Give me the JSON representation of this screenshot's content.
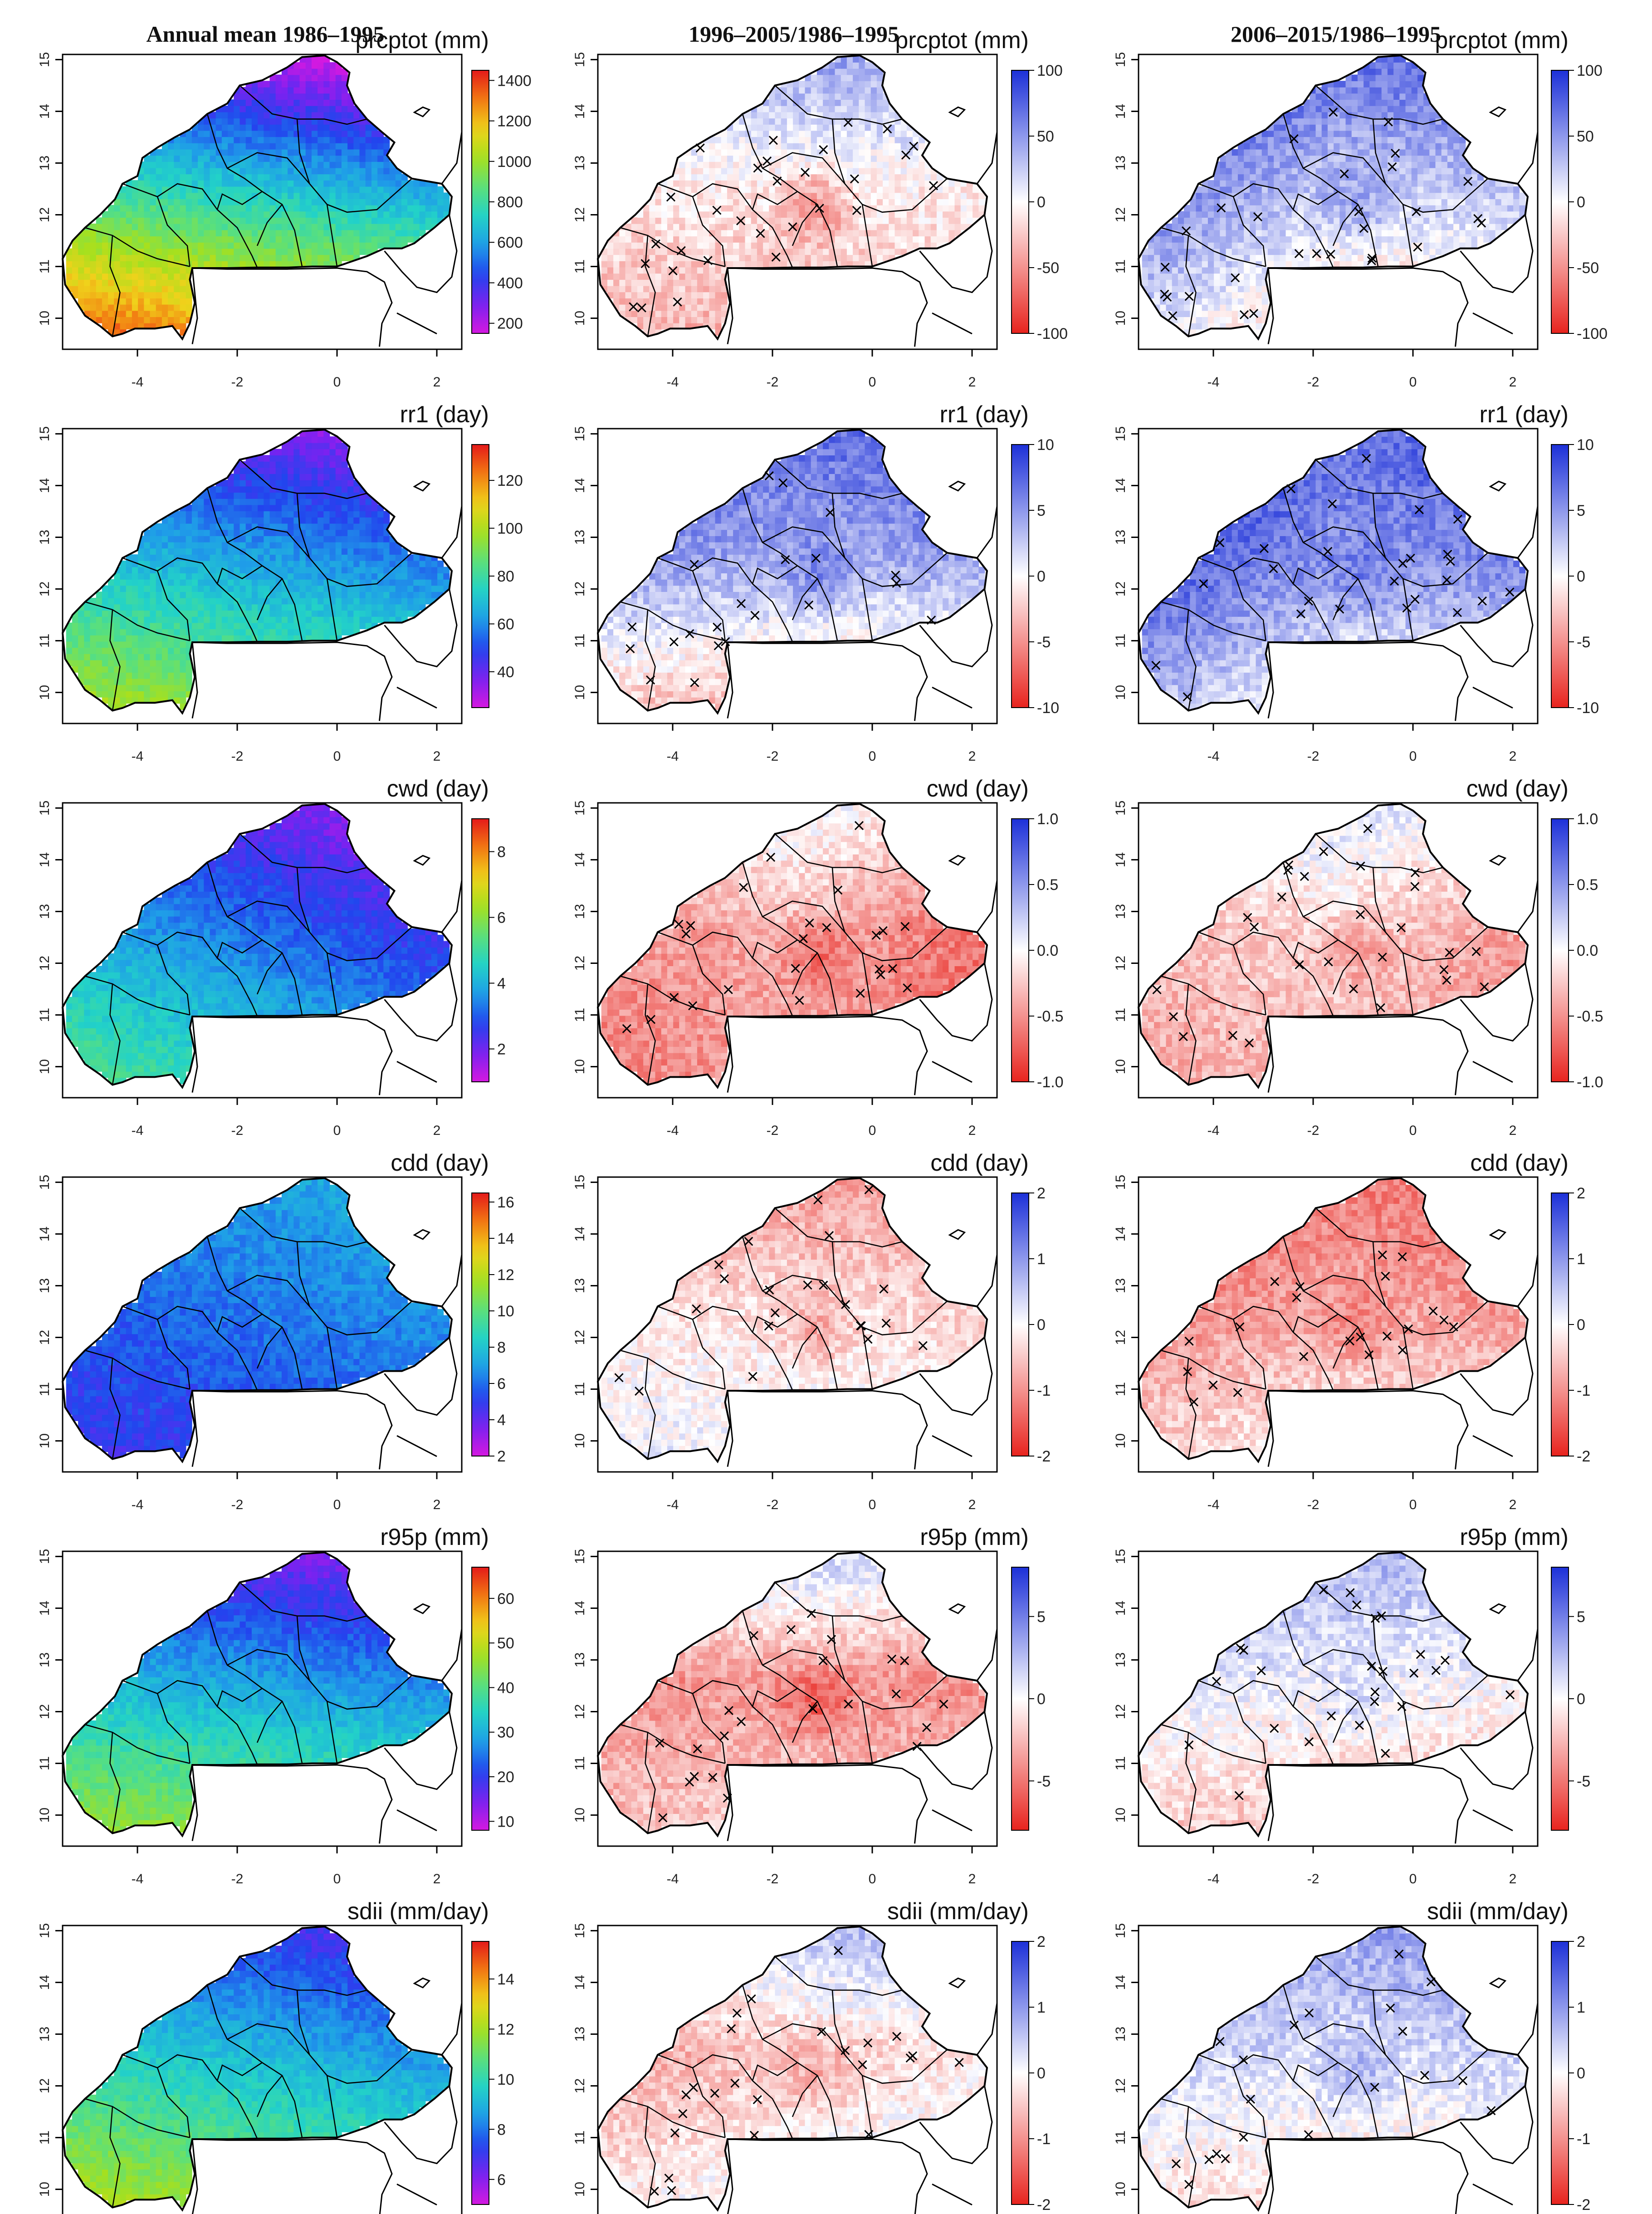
{
  "columns": [
    {
      "title": "Annual mean 1986–1995",
      "type": "mean"
    },
    {
      "title": "1996–2005/1986–1995",
      "type": "diff"
    },
    {
      "title": "2006–2015/1986–1995",
      "type": "diff"
    }
  ],
  "axes": {
    "x_ticks": [
      "-4",
      "-2",
      "0",
      "2"
    ],
    "y_ticks": [
      "10",
      "11",
      "12",
      "13",
      "14",
      "15"
    ],
    "x_range": [
      -5.5,
      2.5
    ],
    "y_range": [
      9.4,
      15.1
    ]
  },
  "colors": {
    "mean_ramp": [
      "#d419e0",
      "#7a22f0",
      "#2244ee",
      "#1f9de8",
      "#22d2c8",
      "#5ce07a",
      "#a6e01e",
      "#f0d21b",
      "#f27a12",
      "#e41a1a"
    ],
    "diff_neg": "#e8241e",
    "diff_mid": "#ffffff",
    "diff_pos": "#1c30d8"
  },
  "rows": [
    {
      "index": "prcptot",
      "label": "prcptot (mm)",
      "mean": {
        "ticks": [
          "200",
          "400",
          "600",
          "800",
          "1000",
          "1200",
          "1400"
        ],
        "range": [
          150,
          1450
        ]
      },
      "diff": {
        "ticks": [
          "-100",
          "-50",
          "0",
          "50",
          "100"
        ],
        "range": [
          -100,
          100
        ]
      },
      "gradient": {
        "lat_low": 1250,
        "lat_high": 200,
        "lon_east_shift": -120
      },
      "changes": [
        {
          "north": 45,
          "middle": -8,
          "south": -35,
          "west": 0,
          "east": 5,
          "hot_sign": -1,
          "hot": 40
        },
        {
          "north": 70,
          "middle": 25,
          "south": -30,
          "west": 65,
          "east": 10,
          "hot_sign": 1,
          "hot": 30
        }
      ]
    },
    {
      "index": "rr1",
      "label": "rr1 (day)",
      "mean": {
        "ticks": [
          "40",
          "60",
          "80",
          "100",
          "120"
        ],
        "range": [
          25,
          135
        ]
      },
      "diff": {
        "ticks": [
          "-10",
          "-5",
          "0",
          "5",
          "10"
        ],
        "range": [
          -10,
          10
        ]
      },
      "gradient": {
        "lat_low": 92,
        "lat_high": 38,
        "lon_east_shift": -8
      },
      "changes": [
        {
          "north": 7,
          "middle": 4,
          "south": -4,
          "west": 2,
          "east": 1,
          "hot_sign": 1,
          "hot": 3
        },
        {
          "north": 7,
          "middle": 5,
          "south": -1,
          "west": 6,
          "east": 2,
          "hot_sign": 1,
          "hot": 2
        }
      ]
    },
    {
      "index": "cwd",
      "label": "cwd (day)",
      "mean": {
        "ticks": [
          "2",
          "4",
          "6",
          "8"
        ],
        "range": [
          1,
          9
        ]
      },
      "diff": {
        "ticks": [
          "-1.0",
          "-0.5",
          "0.0",
          "0.5",
          "1.0"
        ],
        "range": [
          -1,
          1
        ]
      },
      "gradient": {
        "lat_low": 4.6,
        "lat_high": 2.0,
        "lon_east_shift": -0.8
      },
      "changes": [
        {
          "north": 0.1,
          "middle": -0.35,
          "south": -0.45,
          "west": -0.2,
          "east": -0.5,
          "hot_sign": -1,
          "hot": 0.3
        },
        {
          "north": 0.2,
          "middle": -0.2,
          "south": -0.3,
          "west": -0.15,
          "east": -0.4,
          "hot_sign": -1,
          "hot": 0.2
        }
      ]
    },
    {
      "index": "cdd",
      "label": "cdd (day)",
      "mean": {
        "ticks": [
          "2",
          "4",
          "6",
          "8",
          "10",
          "12",
          "14",
          "16"
        ],
        "range": [
          2,
          16.5
        ]
      },
      "diff": {
        "ticks": [
          "-2",
          "-1",
          "0",
          "1",
          "2"
        ],
        "range": [
          -2,
          2
        ]
      },
      "gradient": {
        "lat_low": 5.2,
        "lat_high": 7.0,
        "lon_east_shift": 0.6
      },
      "changes": [
        {
          "north": -0.9,
          "middle": -0.3,
          "south": 0.1,
          "west": 0.1,
          "east": -0.2,
          "hot_sign": -1,
          "hot": 0.6
        },
        {
          "north": -1.2,
          "middle": -0.8,
          "south": 0.0,
          "west": -0.5,
          "east": -0.3,
          "hot_sign": -1,
          "hot": 0.5
        }
      ]
    },
    {
      "index": "r95p",
      "label": "r95p (mm)",
      "mean": {
        "ticks": [
          "10",
          "20",
          "30",
          "40",
          "50",
          "60"
        ],
        "range": [
          8,
          67
        ]
      },
      "diff": {
        "ticks": [
          "-5",
          "0",
          "5"
        ],
        "range": [
          -8,
          8
        ]
      },
      "gradient": {
        "lat_low": 44,
        "lat_high": 15,
        "lon_east_shift": -3
      },
      "changes": [
        {
          "north": 2,
          "middle": -3.5,
          "south": -1.5,
          "west": -1,
          "east": -1,
          "hot_sign": -1,
          "hot": 3
        },
        {
          "north": 3,
          "middle": 0.5,
          "south": -2.5,
          "west": 1,
          "east": -0.5,
          "hot_sign": 1,
          "hot": 1.5
        }
      ]
    },
    {
      "index": "sdii",
      "label": "sdii (mm/day)",
      "mean": {
        "ticks": [
          "6",
          "8",
          "10",
          "12",
          "14"
        ],
        "range": [
          5,
          15.5
        ]
      },
      "diff": {
        "ticks": [
          "-2",
          "-1",
          "0",
          "1",
          "2"
        ],
        "range": [
          -2,
          2
        ]
      },
      "gradient": {
        "lat_low": 11.5,
        "lat_high": 7.0,
        "lon_east_shift": -0.8
      },
      "changes": [
        {
          "north": 0.6,
          "middle": -0.5,
          "south": 0.2,
          "west": -0.5,
          "east": 0.4,
          "hot_sign": -1,
          "hot": 0.4
        },
        {
          "north": 0.9,
          "middle": 0.3,
          "south": -0.4,
          "west": 0.2,
          "east": 0.2,
          "hot_sign": 1,
          "hot": 0.6
        }
      ]
    }
  ]
}
